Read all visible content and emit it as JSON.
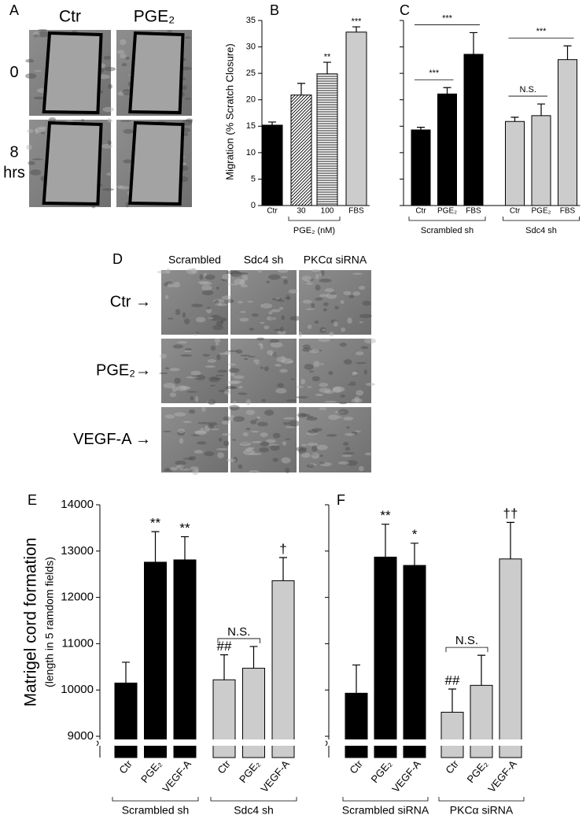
{
  "images": [
    {
      "label": "A",
      "columns": [
        "Ctr",
        "PGE₂"
      ],
      "rows": [
        "0",
        "8 hrs"
      ]
    },
    {
      "label": "D",
      "columns": [
        "Scrambled",
        "Sdc4 sh",
        "PKCα siRNA"
      ],
      "rows": [
        "Ctr →",
        "PGE₂→",
        "VEGF-A →"
      ]
    }
  ],
  "chart_data": [
    {
      "type": "bar",
      "label": "B",
      "ylabel": "Migration (% Scratch Closure)",
      "ylim": [
        0,
        35
      ],
      "yticks": [
        0,
        5,
        10,
        15,
        20,
        25,
        30,
        35
      ],
      "ytick_labels": true,
      "comparison_style": "line",
      "groups": [
        {
          "name": null,
          "categories": [
            "Ctr"
          ],
          "values": [
            15.2
          ],
          "errors": [
            0.6
          ],
          "fills": [
            "#000000"
          ],
          "significance": [
            null
          ]
        },
        {
          "name": "PGE₂ (nM)",
          "categories": [
            "30",
            "100"
          ],
          "values": [
            20.9,
            24.9
          ],
          "errors": [
            2.2,
            2.2
          ],
          "fills": [
            "diagonal",
            "horizontal"
          ],
          "significance": [
            null,
            "**"
          ]
        },
        {
          "name": null,
          "categories": [
            "FBS"
          ],
          "values": [
            32.8
          ],
          "errors": [
            1.0
          ],
          "fills": [
            "#cccccc"
          ],
          "significance": [
            "***"
          ]
        }
      ]
    },
    {
      "type": "bar",
      "label": "C",
      "ylim": [
        0,
        35
      ],
      "yticks": [
        0,
        5,
        10,
        15,
        20,
        25,
        30,
        35
      ],
      "ytick_labels": false,
      "comparison_style": "line",
      "groups": [
        {
          "name": "Scrambled sh",
          "categories": [
            "Ctr",
            "PGE₂",
            "FBS"
          ],
          "values": [
            14.3,
            21.1,
            28.6
          ],
          "errors": [
            0.5,
            1.2,
            4.1
          ],
          "fills": [
            "#000000",
            "#000000",
            "#000000"
          ],
          "comparisons": [
            {
              "text": "***",
              "from": 0,
              "to": 1
            },
            {
              "text": "***",
              "from": 0,
              "to": 2
            }
          ]
        },
        {
          "name": "Sdc4 sh",
          "categories": [
            "Ctr",
            "PGE₂",
            "FBS"
          ],
          "values": [
            15.9,
            17.0,
            27.6
          ],
          "errors": [
            0.8,
            2.2,
            2.6
          ],
          "fills": [
            "#cccccc",
            "#cccccc",
            "#cccccc"
          ],
          "comparisons": [
            {
              "text": "N.S.",
              "from": 0,
              "to": 1
            },
            {
              "text": "***",
              "from": 0,
              "to": 2
            }
          ]
        }
      ]
    },
    {
      "type": "bar",
      "label": "E",
      "ylabel": "Matrigel cord formation",
      "ylabel_sub": "(length  in 5 ramdom fields)",
      "ylim": [
        9000,
        14000
      ],
      "yticks": [
        9000,
        10000,
        11000,
        12000,
        13000,
        14000
      ],
      "ytick_labels": true,
      "axis_break": true,
      "comparison_style": "bracket",
      "groups": [
        {
          "name": "Scrambled sh",
          "categories": [
            "Ctr",
            "PGE₂",
            "VEGF-A"
          ],
          "values": [
            10150,
            12760,
            12810
          ],
          "errors": [
            450,
            660,
            500
          ],
          "fills": [
            "#000000",
            "#000000",
            "#000000"
          ],
          "significance": [
            null,
            "**",
            "**"
          ]
        },
        {
          "name": "Sdc4 sh",
          "categories": [
            "Ctr",
            "PGE₂",
            "VEGF-A"
          ],
          "values": [
            10220,
            10470,
            12360
          ],
          "errors": [
            540,
            470,
            500
          ],
          "fills": [
            "#cccccc",
            "#cccccc",
            "#cccccc"
          ],
          "significance": [
            "##",
            null,
            "†"
          ],
          "comparisons": [
            {
              "text": "N.S.",
              "from": 0,
              "to": 1
            }
          ]
        }
      ]
    },
    {
      "type": "bar",
      "label": "F",
      "ylim": [
        9000,
        14000
      ],
      "yticks": [
        9000,
        10000,
        11000,
        12000,
        13000,
        14000
      ],
      "ytick_labels": false,
      "axis_break": true,
      "comparison_style": "bracket",
      "groups": [
        {
          "name": "Scrambled siRNA",
          "categories": [
            "Ctr",
            "PGE₂",
            "VEGF-A"
          ],
          "values": [
            9930,
            12870,
            12690
          ],
          "errors": [
            610,
            710,
            480
          ],
          "fills": [
            "#000000",
            "#000000",
            "#000000"
          ],
          "significance": [
            null,
            "**",
            "*"
          ]
        },
        {
          "name": "PKCα siRNA",
          "categories": [
            "Ctr",
            "PGE₂",
            "VEGF-A"
          ],
          "values": [
            9520,
            10100,
            12830
          ],
          "errors": [
            500,
            650,
            790
          ],
          "fills": [
            "#cccccc",
            "#cccccc",
            "#cccccc"
          ],
          "significance": [
            "##",
            null,
            "††"
          ],
          "comparisons": [
            {
              "text": "N.S.",
              "from": 0,
              "to": 1
            }
          ]
        }
      ]
    }
  ]
}
